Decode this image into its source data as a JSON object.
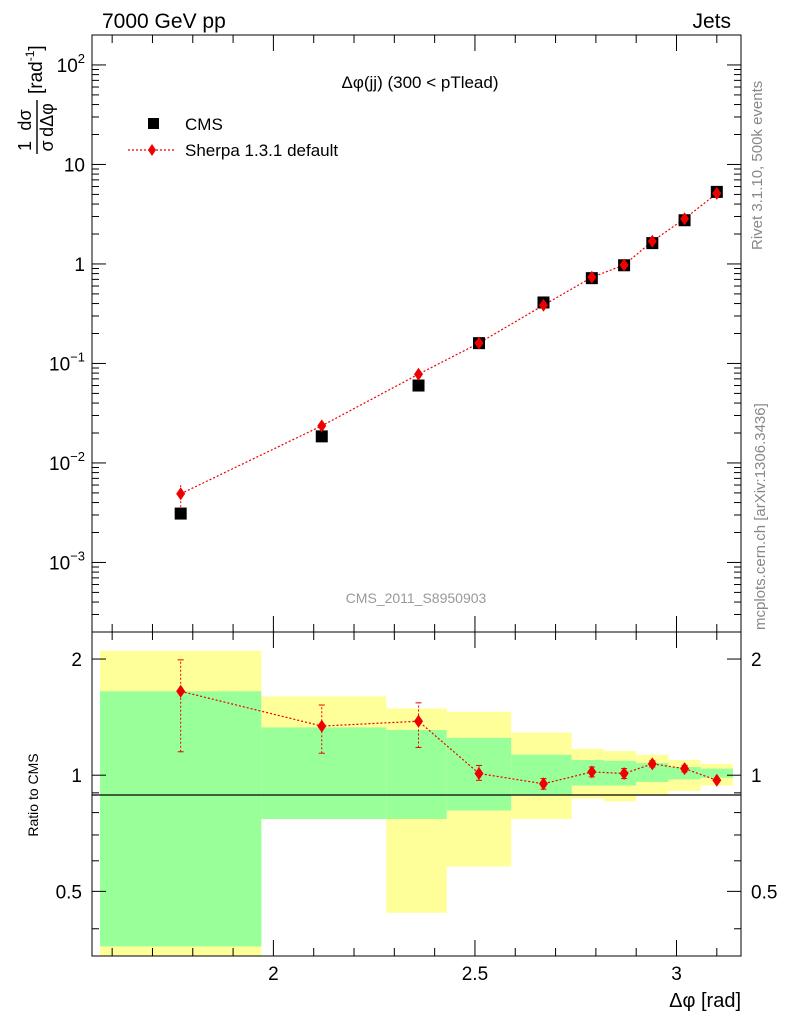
{
  "header": {
    "left": "7000 GeV pp",
    "right": "Jets"
  },
  "side_labels": {
    "rivet": "Rivet 3.1.10,  500k events",
    "mcplots": "mcplots.cern.ch [arXiv:1306.3436]"
  },
  "watermark": "CMS_2011_S8950903",
  "chart_data": [
    {
      "type": "scatter",
      "title": "Δφ(jj) (300 < pTlead)",
      "ylabel": "1/σ dσ/dΔφ [rad⁻¹]",
      "ylabel_parts": {
        "num_1": "1",
        "num_2": "dσ",
        "den_1": "σ",
        "den_2": "dΔφ",
        "unit": "[rad",
        "unit_exp": "-1",
        "unit_close": "]"
      },
      "yscale": "log",
      "ylim": [
        0.0002,
        200
      ],
      "xlim": [
        1.55,
        3.16
      ],
      "y_ticks": [
        {
          "value": 0.001,
          "base": "10",
          "exp": "−3"
        },
        {
          "value": 0.01,
          "base": "10",
          "exp": "−2"
        },
        {
          "value": 0.1,
          "base": "10",
          "exp": "−1"
        },
        {
          "value": 1,
          "base": "1",
          "exp": ""
        },
        {
          "value": 10,
          "base": "10",
          "exp": ""
        },
        {
          "value": 100,
          "base": "10",
          "exp": "2"
        }
      ],
      "legend_position": "top-left",
      "series": [
        {
          "name": "CMS",
          "marker": "square",
          "color": "#000000",
          "x": [
            1.77,
            2.12,
            2.36,
            2.51,
            2.67,
            2.79,
            2.87,
            2.94,
            3.02,
            3.1
          ],
          "y": [
            0.0031,
            0.0185,
            0.06,
            0.16,
            0.41,
            0.72,
            0.97,
            1.62,
            2.75,
            5.3
          ]
        },
        {
          "name": "Sherpa 1.3.1 default",
          "marker": "diamond",
          "color": "#ee0000",
          "x": [
            1.77,
            2.12,
            2.36,
            2.51,
            2.67,
            2.79,
            2.87,
            2.94,
            3.02,
            3.1
          ],
          "y": [
            0.0049,
            0.0236,
            0.078,
            0.16,
            0.385,
            0.735,
            0.975,
            1.69,
            2.85,
            5.12
          ],
          "yerr_low": [
            0.0036,
            0.0221,
            0.0745,
            0.156,
            0.375,
            0.72,
            0.96,
            1.66,
            2.8,
            5.0
          ],
          "yerr_high": [
            0.0061,
            0.0251,
            0.0815,
            0.164,
            0.395,
            0.75,
            0.99,
            1.72,
            2.9,
            5.24
          ]
        }
      ]
    },
    {
      "type": "scatter",
      "ylabel": "Ratio to CMS",
      "xlabel": "Δφ [rad]",
      "yscale": "log",
      "ylim": [
        0.34,
        2.35
      ],
      "xlim": [
        1.55,
        3.16
      ],
      "reference_line": 1,
      "y_ticks": [
        {
          "value": 0.5,
          "label": "0.5"
        },
        {
          "value": 1,
          "label": "1"
        },
        {
          "value": 2,
          "label": "2"
        }
      ],
      "x_ticks": [
        {
          "value": 2,
          "label": "2"
        },
        {
          "value": 2.5,
          "label": "2.5"
        },
        {
          "value": 3,
          "label": "3"
        }
      ],
      "bands": {
        "edges": [
          1.57,
          1.97,
          2.28,
          2.43,
          2.59,
          2.74,
          2.82,
          2.9,
          2.98,
          3.06,
          3.14
        ],
        "outer_low": [
          0.33,
          0.77,
          0.44,
          0.58,
          0.77,
          0.87,
          0.855,
          0.885,
          0.91,
          0.94
        ],
        "outer_high": [
          2.1,
          1.6,
          1.49,
          1.46,
          1.29,
          1.17,
          1.155,
          1.13,
          1.095,
          1.07
        ],
        "inner_low": [
          0.36,
          0.77,
          0.77,
          0.81,
          0.89,
          0.94,
          0.94,
          0.96,
          0.975,
          0.985
        ],
        "inner_high": [
          1.65,
          1.33,
          1.31,
          1.25,
          1.13,
          1.095,
          1.09,
          1.075,
          1.05,
          1.04
        ]
      },
      "series": [
        {
          "name": "Sherpa 1.3.1 default",
          "marker": "diamond",
          "color": "#ee0000",
          "x": [
            1.77,
            2.12,
            2.36,
            2.51,
            2.67,
            2.79,
            2.87,
            2.94,
            3.02,
            3.1
          ],
          "y": [
            1.65,
            1.34,
            1.38,
            1.01,
            0.95,
            1.02,
            1.01,
            1.07,
            1.04,
            0.97
          ],
          "yerr_low": [
            1.15,
            1.14,
            1.18,
            0.97,
            0.92,
            0.99,
            0.98,
            1.05,
            1.02,
            0.96
          ],
          "yerr_high": [
            1.99,
            1.52,
            1.54,
            1.06,
            0.98,
            1.05,
            1.04,
            1.09,
            1.06,
            0.98
          ]
        }
      ]
    }
  ]
}
